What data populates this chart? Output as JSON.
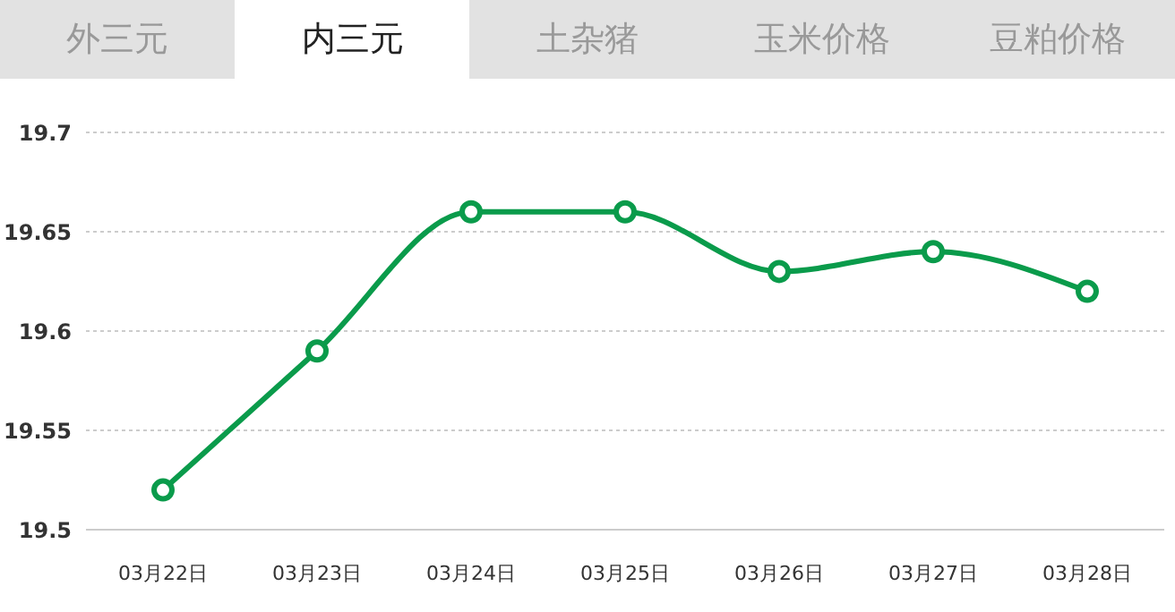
{
  "chart_data": {
    "type": "line",
    "annotations": [
      "外三元",
      "内三元",
      "土杂猪",
      "玉米价格",
      "豆粕价格"
    ],
    "categories": [
      "03月22日",
      "03月23日",
      "03月24日",
      "03月25日",
      "03月26日",
      "03月27日",
      "03月28日"
    ],
    "series": [
      {
        "color": "#0a9b4b",
        "values": [
          19.52,
          19.59,
          19.66,
          19.66,
          19.63,
          19.64,
          19.62
        ]
      }
    ],
    "ylim": [
      19.5,
      19.7
    ],
    "yticks": [
      19.5,
      19.55,
      19.6,
      19.65,
      19.7
    ],
    "grid": "y",
    "marker": "circle",
    "line_style": "solid",
    "legend": false
  }
}
